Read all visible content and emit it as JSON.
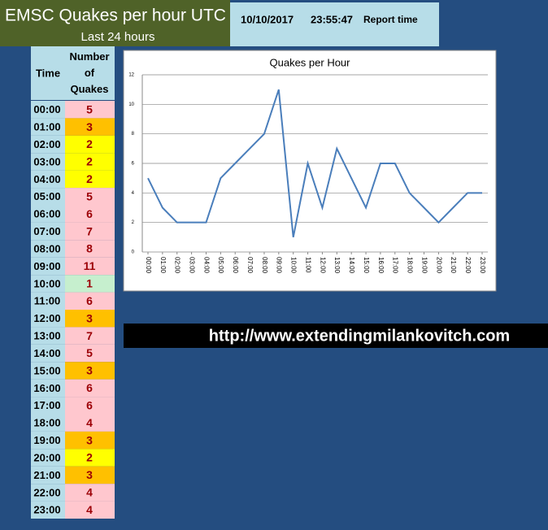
{
  "header": {
    "title": "EMSC Quakes per hour UTC",
    "subtitle": "Last 24 hours",
    "date": "10/10/2017",
    "time": "23:55:47",
    "time_label": "Report time"
  },
  "table": {
    "headers": [
      "Time",
      "Number of Quakes"
    ],
    "cell_colors": [
      "#ffc7ce",
      "#ffc000",
      "#ffff00",
      "#ffff00",
      "#ffff00",
      "#ffc7ce",
      "#ffc7ce",
      "#ffc7ce",
      "#ffc7ce",
      "#ffc7ce",
      "#c6efce",
      "#ffc7ce",
      "#ffc000",
      "#ffc7ce",
      "#ffc7ce",
      "#ffc000",
      "#ffc7ce",
      "#ffc7ce",
      "#ffc7ce",
      "#ffc000",
      "#ffff00",
      "#ffc000",
      "#ffc7ce",
      "#ffc7ce"
    ]
  },
  "url": "http://www.extendingmilankovitch.com",
  "chart_data": {
    "type": "line",
    "title": "Quakes per Hour",
    "categories": [
      "00:00",
      "01:00",
      "02:00",
      "03:00",
      "04:00",
      "05:00",
      "06:00",
      "07:00",
      "08:00",
      "09:00",
      "10:00",
      "11:00",
      "12:00",
      "13:00",
      "14:00",
      "15:00",
      "16:00",
      "17:00",
      "18:00",
      "19:00",
      "20:00",
      "21:00",
      "22:00",
      "23:00"
    ],
    "values": [
      5,
      3,
      2,
      2,
      2,
      5,
      6,
      7,
      8,
      11,
      1,
      6,
      3,
      7,
      5,
      3,
      6,
      6,
      4,
      3,
      2,
      3,
      4,
      4
    ],
    "color": "#4a7ebb",
    "ylim": [
      0,
      12
    ],
    "yticks": [
      0,
      2,
      4,
      6,
      8,
      10,
      12
    ],
    "grid": true
  }
}
